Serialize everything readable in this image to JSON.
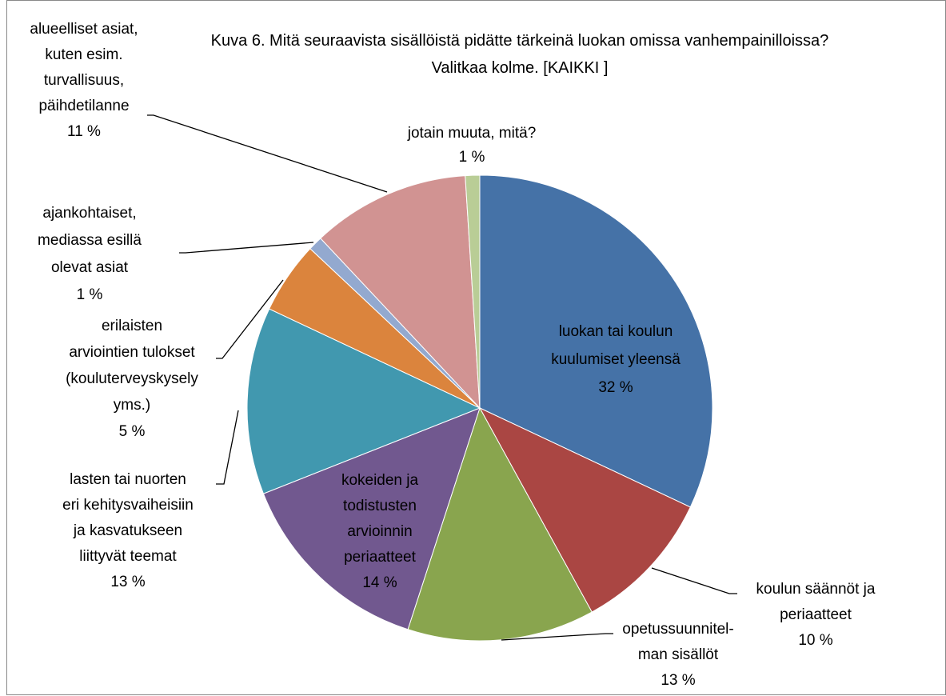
{
  "chart_data": {
    "type": "pie",
    "title": "Kuva 6. Mitä seuraavista sisällöistä pidätte tärkeinä luokan omissa vanhempainilloissa? Valitkaa kolme. [KAIKKI ]",
    "categories": [
      "luokan tai koulun\nkuulumiset yleensä",
      "koulun säännöt ja\nperiaatteet",
      "opetussuunnitel-\nman sisällöt",
      "kokeiden ja\ntodistusten\narvioinnin\nperiaatteet",
      "lasten tai nuorten\neri kehitysvaiheisiin\nja kasvatukseen\nliittyvät teemat",
      "erilaisten\narviointien tulokset\n(kouluterveyskysely\nyms.)",
      "ajankohtaiset,\nmediassa esillä\nolevat asiat",
      "alueelliset asiat,\nkuten esim.\nturvallisuus,\npäihdetilanne",
      "jotain muuta, mitä?"
    ],
    "values": [
      32,
      10,
      13,
      14,
      13,
      5,
      1,
      11,
      1
    ],
    "value_labels": [
      "32 %",
      "10 %",
      "13 %",
      "14 %",
      "13 %",
      "5 %",
      "1 %",
      "11 %",
      "1 %"
    ],
    "colors": [
      "#4572a7",
      "#aa4643",
      "#89a54e",
      "#71588f",
      "#4198af",
      "#db843d",
      "#93a9cf",
      "#d19392",
      "#b9cd96"
    ]
  }
}
